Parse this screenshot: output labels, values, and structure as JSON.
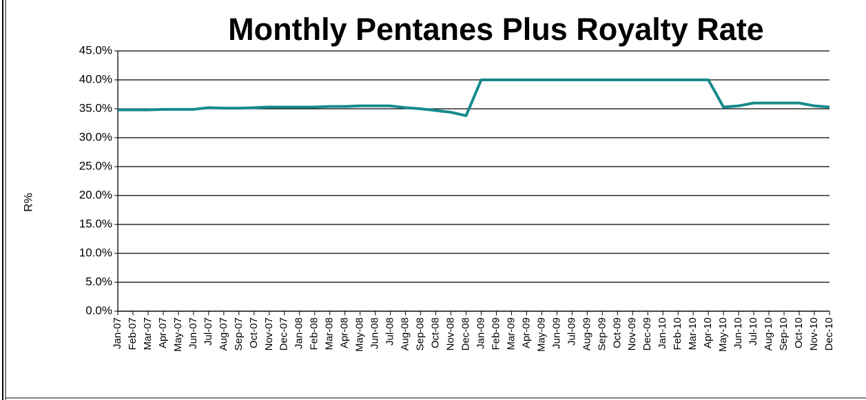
{
  "chart_data": {
    "type": "line",
    "title": "Monthly Pentanes Plus Royalty Rate",
    "y_label": "R%",
    "categories": [
      "Jan-07",
      "Feb-07",
      "Mar-07",
      "Apr-07",
      "May-07",
      "Jun-07",
      "Jul-07",
      "Aug-07",
      "Sep-07",
      "Oct-07",
      "Nov-07",
      "Dec-07",
      "Jan-08",
      "Feb-08",
      "Mar-08",
      "Apr-08",
      "May-08",
      "Jun-08",
      "Jul-08",
      "Aug-08",
      "Sep-08",
      "Oct-08",
      "Nov-08",
      "Dec-08",
      "Jan-09",
      "Feb-09",
      "Mar-09",
      "Apr-09",
      "May-09",
      "Jun-09",
      "Jul-09",
      "Aug-09",
      "Sep-09",
      "Oct-09",
      "Nov-09",
      "Dec-09",
      "Jan-10",
      "Feb-10",
      "Mar-10",
      "Apr-10",
      "May-10",
      "Jun-10",
      "Jul-10",
      "Aug-10",
      "Sep-10",
      "Oct-10",
      "Nov-10",
      "Dec-10"
    ],
    "series": [
      {
        "name": "R%",
        "color": "#168b8b",
        "values": [
          34.8,
          34.8,
          34.8,
          34.9,
          34.9,
          34.9,
          35.2,
          35.1,
          35.1,
          35.2,
          35.3,
          35.3,
          35.3,
          35.3,
          35.4,
          35.4,
          35.5,
          35.5,
          35.5,
          35.2,
          35.0,
          34.7,
          34.4,
          33.8,
          40.0,
          40.0,
          40.0,
          40.0,
          40.0,
          40.0,
          40.0,
          40.0,
          40.0,
          40.0,
          40.0,
          40.0,
          40.0,
          40.0,
          40.0,
          40.0,
          35.3,
          35.5,
          36.0,
          36.0,
          36.0,
          36.0,
          35.5,
          35.3
        ]
      }
    ],
    "ylim": [
      0,
      45
    ],
    "yticks": [
      {
        "value": 0,
        "label": "0.0%"
      },
      {
        "value": 5,
        "label": "5.0%"
      },
      {
        "value": 10,
        "label": "10.0%"
      },
      {
        "value": 15,
        "label": "15.0%"
      },
      {
        "value": 20,
        "label": "20.0%"
      },
      {
        "value": 25,
        "label": "25.0%"
      },
      {
        "value": 30,
        "label": "30.0%"
      },
      {
        "value": 35,
        "label": "35.0%"
      },
      {
        "value": 40,
        "label": "40.0%"
      },
      {
        "value": 45,
        "label": "45.0%"
      }
    ],
    "grid": true
  }
}
